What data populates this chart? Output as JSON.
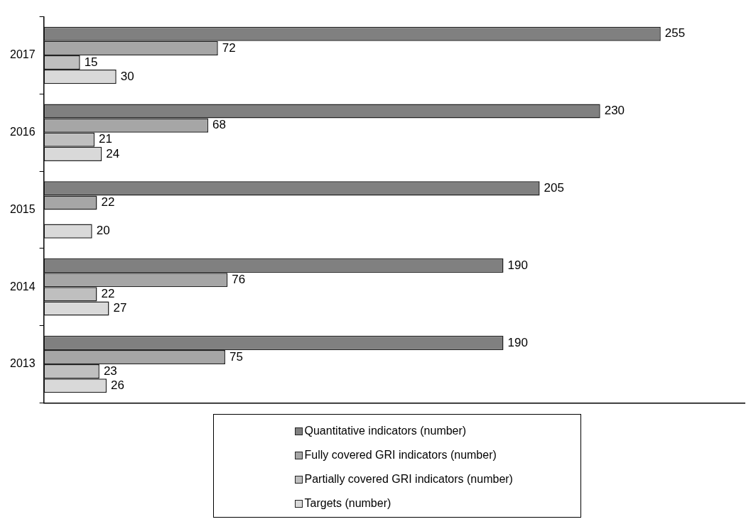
{
  "chart_data": {
    "type": "bar",
    "orientation": "horizontal",
    "categories": [
      "2017",
      "2016",
      "2015",
      "2014",
      "2013"
    ],
    "series": [
      {
        "name": "Quantitative indicators (number)",
        "color": "#808080",
        "values": [
          255,
          230,
          205,
          190,
          190
        ]
      },
      {
        "name": "Fully covered GRI  indicators (number)",
        "color": "#a6a6a6",
        "values": [
          72,
          68,
          22,
          76,
          75
        ]
      },
      {
        "name": "Partially covered GRI  indicators (number)",
        "color": "#bfbfbf",
        "values": [
          15,
          21,
          null,
          22,
          23
        ]
      },
      {
        "name": "Targets (number)",
        "color": "#d9d9d9",
        "values": [
          30,
          24,
          20,
          27,
          26
        ]
      }
    ],
    "xlim": [
      0,
      290
    ],
    "tick_labels": "y",
    "data_labels": true,
    "legend": "bottom",
    "grid": false
  }
}
